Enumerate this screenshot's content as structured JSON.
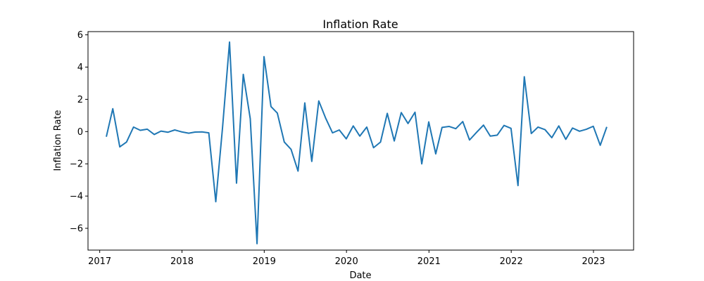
{
  "chart_data": {
    "type": "line",
    "title": "Inflation Rate",
    "xlabel": "Date",
    "ylabel": "Inflation Rate",
    "xlim": [
      "2016-11-10",
      "2023-06-28"
    ],
    "ylim": [
      -7.35,
      6.2
    ],
    "x_ticks": [
      "2017",
      "2018",
      "2019",
      "2020",
      "2021",
      "2022",
      "2023"
    ],
    "y_ticks": [
      -6,
      -4,
      -2,
      0,
      2,
      4,
      6
    ],
    "y_tick_labels": [
      "−6",
      "−4",
      "−2",
      "0",
      "2",
      "4",
      "6"
    ],
    "grid": false,
    "legend": "none",
    "color": "#1f77b4",
    "series": [
      {
        "x": [
          "2017-01-31",
          "2017-02-28",
          "2017-03-31",
          "2017-04-30",
          "2017-05-31",
          "2017-06-30",
          "2017-07-31",
          "2017-08-31",
          "2017-09-30",
          "2017-10-31",
          "2017-11-30",
          "2017-12-31",
          "2018-01-31",
          "2018-02-28",
          "2018-03-31",
          "2018-04-30",
          "2018-05-31",
          "2018-06-30",
          "2018-07-31",
          "2018-08-31",
          "2018-09-30",
          "2018-10-31",
          "2018-11-30",
          "2018-12-31",
          "2019-01-31",
          "2019-02-28",
          "2019-03-31",
          "2019-04-30",
          "2019-05-31",
          "2019-06-30",
          "2019-07-31",
          "2019-08-31",
          "2019-09-30",
          "2019-10-31",
          "2019-11-30",
          "2019-12-31",
          "2020-01-31",
          "2020-02-29",
          "2020-03-31",
          "2020-04-30",
          "2020-05-31",
          "2020-06-30",
          "2020-07-31",
          "2020-08-31",
          "2020-09-30",
          "2020-10-31",
          "2020-11-30",
          "2020-12-31",
          "2021-01-31",
          "2021-02-28",
          "2021-03-31",
          "2021-04-30",
          "2021-05-31",
          "2021-06-30",
          "2021-07-31",
          "2021-08-31",
          "2021-09-30",
          "2021-10-31",
          "2021-11-30",
          "2021-12-31",
          "2022-01-31",
          "2022-02-28",
          "2022-03-31",
          "2022-04-30",
          "2022-05-31",
          "2022-06-30",
          "2022-07-31",
          "2022-08-31",
          "2022-09-30",
          "2022-10-31",
          "2022-11-30",
          "2022-12-31",
          "2023-01-31",
          "2023-02-28"
        ],
        "values": [
          -0.28,
          1.42,
          -0.95,
          -0.65,
          0.28,
          0.08,
          0.15,
          -0.18,
          0.03,
          -0.04,
          0.1,
          -0.02,
          -0.1,
          -0.03,
          -0.02,
          -0.08,
          -4.35,
          0.25,
          5.55,
          -3.2,
          3.55,
          0.8,
          -6.95,
          4.65,
          1.55,
          1.15,
          -0.65,
          -1.1,
          -2.45,
          1.78,
          -1.85,
          1.9,
          0.85,
          -0.08,
          0.1,
          -0.45,
          0.35,
          -0.28,
          0.28,
          -1.0,
          -0.65,
          1.13,
          -0.58,
          1.18,
          0.5,
          1.2,
          -2.0,
          0.6,
          -1.38,
          0.26,
          0.32,
          0.18,
          0.62,
          -0.52,
          -0.05,
          0.4,
          -0.28,
          -0.22,
          0.38,
          0.2,
          -3.35,
          3.4,
          -0.12,
          0.28,
          0.12,
          -0.38,
          0.35,
          -0.48,
          0.22,
          0.02,
          0.14,
          0.33,
          -0.85,
          0.25
        ]
      }
    ]
  }
}
